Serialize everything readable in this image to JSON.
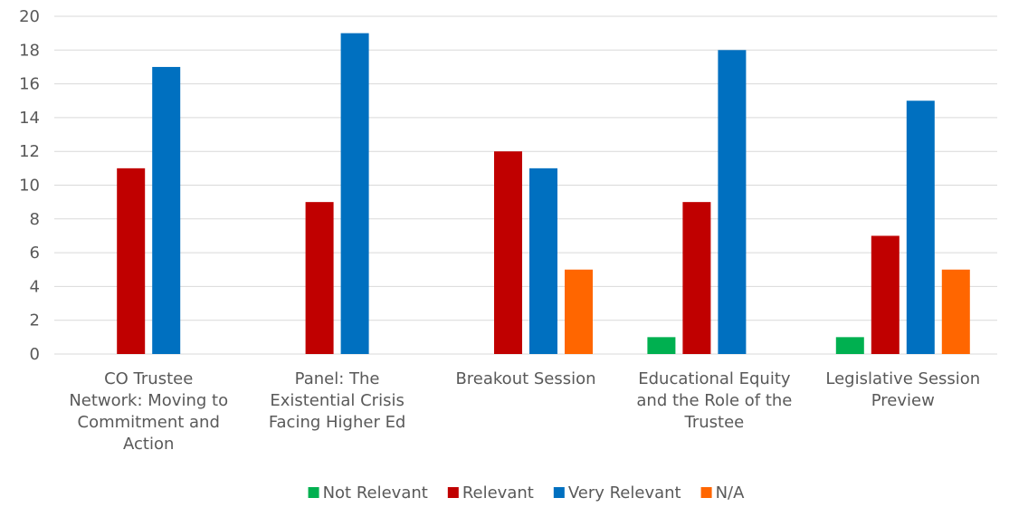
{
  "chart_data": {
    "type": "bar",
    "categories": [
      "CO Trustee Network: Moving to Commitment and Action",
      "Panel: The Existential Crisis Facing Higher Ed",
      "Breakout Session",
      "Educational Equity and the Role of the Trustee",
      "Legislative Session Preview"
    ],
    "category_lines": [
      [
        "CO Trustee",
        "Network: Moving to",
        "Commitment and",
        "Action"
      ],
      [
        "Panel: The",
        "Existential Crisis",
        "Facing Higher Ed"
      ],
      [
        "Breakout Session"
      ],
      [
        "Educational Equity",
        "and the Role of the",
        "Trustee"
      ],
      [
        "Legislative Session",
        "Preview"
      ]
    ],
    "series": [
      {
        "name": "Not Relevant",
        "color": "#00b050",
        "values": [
          0,
          0,
          0,
          1,
          1
        ]
      },
      {
        "name": "Relevant",
        "color": "#c00000",
        "values": [
          11,
          9,
          12,
          9,
          7
        ]
      },
      {
        "name": "Very Relevant",
        "color": "#0070c0",
        "values": [
          17,
          19,
          11,
          18,
          15
        ]
      },
      {
        "name": "N/A",
        "color": "#ff6600",
        "values": [
          0,
          0,
          5,
          0,
          5
        ]
      }
    ],
    "yticks": [
      0,
      2,
      4,
      6,
      8,
      10,
      12,
      14,
      16,
      18,
      20
    ],
    "ylim": [
      0,
      20
    ],
    "title": "",
    "xlabel": "",
    "ylabel": "",
    "grid": true,
    "legend_position": "bottom"
  }
}
